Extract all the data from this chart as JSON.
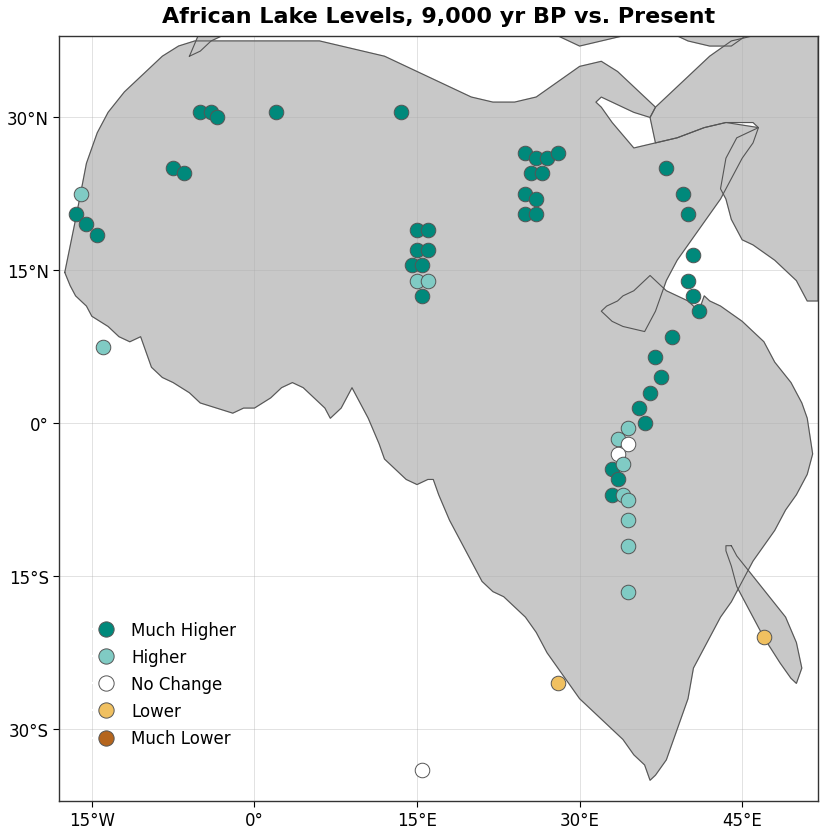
{
  "title": "African Lake Levels, 9,000 yr BP vs. Present",
  "title_fontsize": 16,
  "land_color": "#c8c8c8",
  "ocean_color": "#ffffff",
  "border_color": "#555555",
  "xlim": [
    -18,
    52
  ],
  "ylim": [
    -37,
    38
  ],
  "xticks": [
    -15,
    0,
    15,
    30,
    45
  ],
  "yticks": [
    -30,
    -15,
    0,
    15,
    30
  ],
  "xtick_labels": [
    "15°W",
    "0°",
    "15°E",
    "30°E",
    "45°E"
  ],
  "ytick_labels": [
    "30°S",
    "15°S",
    "0°",
    "15°N",
    "30°N"
  ],
  "colors": {
    "much_higher": "#00897b",
    "higher": "#80cbc4",
    "no_change": "#ffffff",
    "lower": "#f0c060",
    "much_lower": "#b5651d"
  },
  "legend_labels": [
    "Much Higher",
    "Higher",
    "No Change",
    "Lower",
    "Much Lower"
  ],
  "legend_types": [
    "much_higher",
    "higher",
    "no_change",
    "lower",
    "much_lower"
  ],
  "marker_size": 110,
  "edge_color": "#555555",
  "edge_width": 0.7,
  "lakes": [
    {
      "lon": -16.5,
      "lat": 20.5,
      "type": "much_higher"
    },
    {
      "lon": -15.5,
      "lat": 19.5,
      "type": "much_higher"
    },
    {
      "lon": -14.5,
      "lat": 18.5,
      "type": "much_higher"
    },
    {
      "lon": -16.0,
      "lat": 22.5,
      "type": "higher"
    },
    {
      "lon": -7.5,
      "lat": 25.0,
      "type": "much_higher"
    },
    {
      "lon": -6.5,
      "lat": 24.5,
      "type": "much_higher"
    },
    {
      "lon": -5.0,
      "lat": 30.5,
      "type": "much_higher"
    },
    {
      "lon": -4.0,
      "lat": 30.5,
      "type": "much_higher"
    },
    {
      "lon": -3.5,
      "lat": 30.0,
      "type": "much_higher"
    },
    {
      "lon": 2.0,
      "lat": 30.5,
      "type": "much_higher"
    },
    {
      "lon": 13.5,
      "lat": 30.5,
      "type": "much_higher"
    },
    {
      "lon": 15.0,
      "lat": 19.0,
      "type": "much_higher"
    },
    {
      "lon": 16.0,
      "lat": 19.0,
      "type": "much_higher"
    },
    {
      "lon": 15.0,
      "lat": 17.0,
      "type": "much_higher"
    },
    {
      "lon": 16.0,
      "lat": 17.0,
      "type": "much_higher"
    },
    {
      "lon": 14.5,
      "lat": 15.5,
      "type": "much_higher"
    },
    {
      "lon": 15.5,
      "lat": 15.5,
      "type": "much_higher"
    },
    {
      "lon": 15.0,
      "lat": 14.0,
      "type": "higher"
    },
    {
      "lon": 16.0,
      "lat": 14.0,
      "type": "higher"
    },
    {
      "lon": 15.5,
      "lat": 12.5,
      "type": "much_higher"
    },
    {
      "lon": 25.0,
      "lat": 26.5,
      "type": "much_higher"
    },
    {
      "lon": 26.0,
      "lat": 26.0,
      "type": "much_higher"
    },
    {
      "lon": 27.0,
      "lat": 26.0,
      "type": "much_higher"
    },
    {
      "lon": 25.5,
      "lat": 24.5,
      "type": "much_higher"
    },
    {
      "lon": 26.5,
      "lat": 24.5,
      "type": "much_higher"
    },
    {
      "lon": 28.0,
      "lat": 26.5,
      "type": "much_higher"
    },
    {
      "lon": 25.0,
      "lat": 22.5,
      "type": "much_higher"
    },
    {
      "lon": 26.0,
      "lat": 22.0,
      "type": "much_higher"
    },
    {
      "lon": 25.0,
      "lat": 20.5,
      "type": "much_higher"
    },
    {
      "lon": 26.0,
      "lat": 20.5,
      "type": "much_higher"
    },
    {
      "lon": 38.0,
      "lat": 25.0,
      "type": "much_higher"
    },
    {
      "lon": 39.5,
      "lat": 22.5,
      "type": "much_higher"
    },
    {
      "lon": 40.0,
      "lat": 20.5,
      "type": "much_higher"
    },
    {
      "lon": 40.5,
      "lat": 16.5,
      "type": "much_higher"
    },
    {
      "lon": 40.0,
      "lat": 14.0,
      "type": "much_higher"
    },
    {
      "lon": 40.5,
      "lat": 12.5,
      "type": "much_higher"
    },
    {
      "lon": 41.0,
      "lat": 11.0,
      "type": "much_higher"
    },
    {
      "lon": 38.5,
      "lat": 8.5,
      "type": "much_higher"
    },
    {
      "lon": 37.0,
      "lat": 6.5,
      "type": "much_higher"
    },
    {
      "lon": 37.5,
      "lat": 4.5,
      "type": "much_higher"
    },
    {
      "lon": 36.5,
      "lat": 3.0,
      "type": "much_higher"
    },
    {
      "lon": 35.5,
      "lat": 1.5,
      "type": "much_higher"
    },
    {
      "lon": 36.0,
      "lat": 0.0,
      "type": "much_higher"
    },
    {
      "lon": 34.5,
      "lat": -0.5,
      "type": "higher"
    },
    {
      "lon": 33.5,
      "lat": -1.5,
      "type": "higher"
    },
    {
      "lon": 34.5,
      "lat": -2.0,
      "type": "no_change"
    },
    {
      "lon": 33.5,
      "lat": -3.0,
      "type": "no_change"
    },
    {
      "lon": 33.0,
      "lat": -4.5,
      "type": "much_higher"
    },
    {
      "lon": 34.0,
      "lat": -4.0,
      "type": "higher"
    },
    {
      "lon": 33.5,
      "lat": -5.5,
      "type": "much_higher"
    },
    {
      "lon": 33.0,
      "lat": -7.0,
      "type": "much_higher"
    },
    {
      "lon": 34.0,
      "lat": -7.0,
      "type": "higher"
    },
    {
      "lon": 34.5,
      "lat": -7.5,
      "type": "higher"
    },
    {
      "lon": 34.5,
      "lat": -9.5,
      "type": "higher"
    },
    {
      "lon": 34.5,
      "lat": -12.0,
      "type": "higher"
    },
    {
      "lon": 34.5,
      "lat": -16.5,
      "type": "higher"
    },
    {
      "lon": 28.0,
      "lat": -25.5,
      "type": "lower"
    },
    {
      "lon": 15.5,
      "lat": -34.0,
      "type": "no_change"
    },
    {
      "lon": 47.0,
      "lat": -21.0,
      "type": "lower"
    },
    {
      "lon": -14.0,
      "lat": 7.5,
      "type": "higher"
    }
  ]
}
